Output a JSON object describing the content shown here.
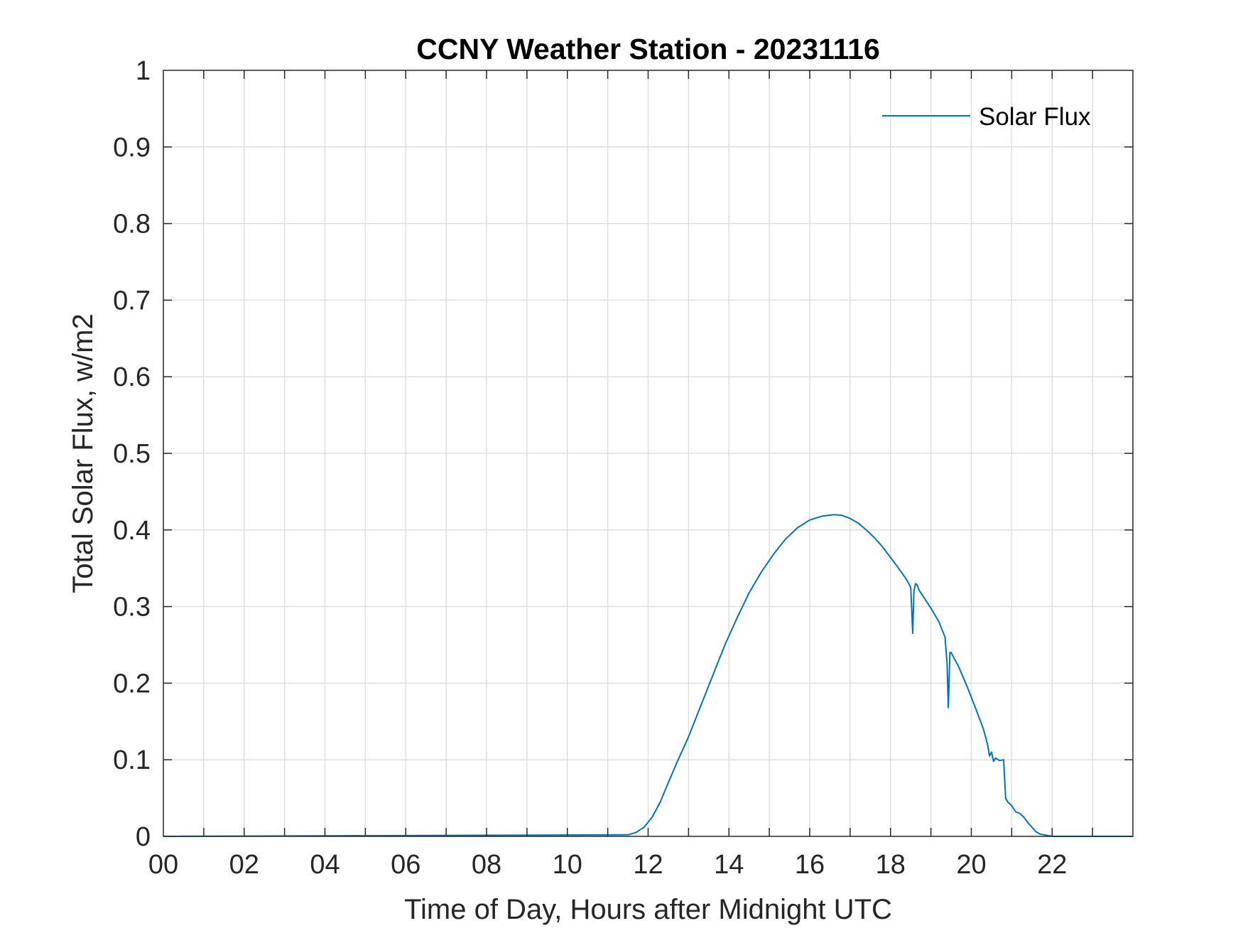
{
  "chart_data": {
    "type": "line",
    "title": "CCNY Weather Station - 20231116",
    "xlabel": "Time of Day, Hours after Midnight UTC",
    "ylabel": "Total Solar Flux, w/m2",
    "xlim": [
      0,
      24
    ],
    "ylim": [
      0,
      1
    ],
    "x_ticks": [
      0,
      2,
      4,
      6,
      8,
      10,
      12,
      14,
      16,
      18,
      20,
      22
    ],
    "x_tick_labels": [
      "00",
      "02",
      "04",
      "06",
      "08",
      "10",
      "12",
      "14",
      "16",
      "18",
      "20",
      "22"
    ],
    "y_ticks": [
      0,
      0.1,
      0.2,
      0.3,
      0.4,
      0.5,
      0.6,
      0.7,
      0.8,
      0.9,
      1
    ],
    "y_tick_labels": [
      "0",
      "0.1",
      "0.2",
      "0.3",
      "0.4",
      "0.5",
      "0.6",
      "0.7",
      "0.8",
      "0.9",
      "1"
    ],
    "grid": true,
    "legend_position": "top-right",
    "series": [
      {
        "name": "Solar Flux",
        "color": "#0072BD",
        "x": [
          0,
          11.5,
          11.7,
          11.9,
          12.1,
          12.3,
          12.5,
          12.7,
          13.0,
          13.3,
          13.6,
          13.9,
          14.2,
          14.5,
          14.8,
          15.1,
          15.4,
          15.7,
          16.0,
          16.3,
          16.6,
          16.8,
          17.0,
          17.2,
          17.4,
          17.6,
          17.8,
          18.0,
          18.2,
          18.4,
          18.5,
          18.55,
          18.58,
          18.62,
          18.66,
          18.7,
          18.85,
          19.0,
          19.2,
          19.35,
          19.4,
          19.43,
          19.47,
          19.5,
          19.7,
          19.9,
          20.1,
          20.3,
          20.4,
          20.45,
          20.5,
          20.55,
          20.6,
          20.7,
          20.8,
          20.82,
          20.85,
          20.9,
          21.0,
          21.1,
          21.2,
          21.3,
          21.4,
          21.5,
          21.6,
          21.7,
          21.8,
          21.9,
          22.0,
          24.0
        ],
        "y": [
          0,
          0.002,
          0.005,
          0.012,
          0.025,
          0.045,
          0.07,
          0.095,
          0.13,
          0.17,
          0.21,
          0.25,
          0.285,
          0.318,
          0.345,
          0.368,
          0.388,
          0.403,
          0.413,
          0.418,
          0.42,
          0.419,
          0.415,
          0.409,
          0.4,
          0.39,
          0.378,
          0.364,
          0.35,
          0.335,
          0.325,
          0.265,
          0.32,
          0.33,
          0.328,
          0.322,
          0.31,
          0.298,
          0.28,
          0.26,
          0.225,
          0.168,
          0.24,
          0.24,
          0.22,
          0.195,
          0.168,
          0.14,
          0.12,
          0.105,
          0.11,
          0.098,
          0.102,
          0.099,
          0.1,
          0.08,
          0.05,
          0.045,
          0.04,
          0.032,
          0.03,
          0.025,
          0.018,
          0.012,
          0.006,
          0.003,
          0.002,
          0.001,
          0,
          0
        ]
      }
    ]
  }
}
